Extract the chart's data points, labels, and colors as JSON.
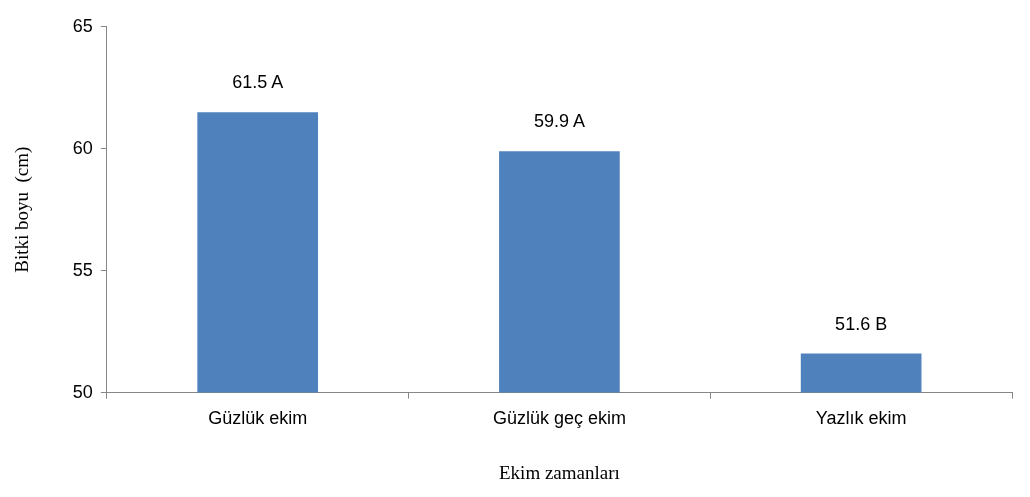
{
  "chart_data": {
    "type": "bar",
    "xlabel": "Ekim zamanları",
    "ylabel": "Bitki boyu  (cm)",
    "categories": [
      "Güzlük ekim",
      "Güzlük geç ekim",
      "Yazlık ekim"
    ],
    "values": [
      61.5,
      59.9,
      51.6
    ],
    "color": "#4f81bd",
    "value_labels": [
      "61.5 A",
      "59.9 A",
      "51.6 B"
    ],
    "ylim": [
      50,
      65
    ],
    "yticks": [
      50,
      55,
      60,
      65
    ],
    "grid": false,
    "legend": false
  }
}
